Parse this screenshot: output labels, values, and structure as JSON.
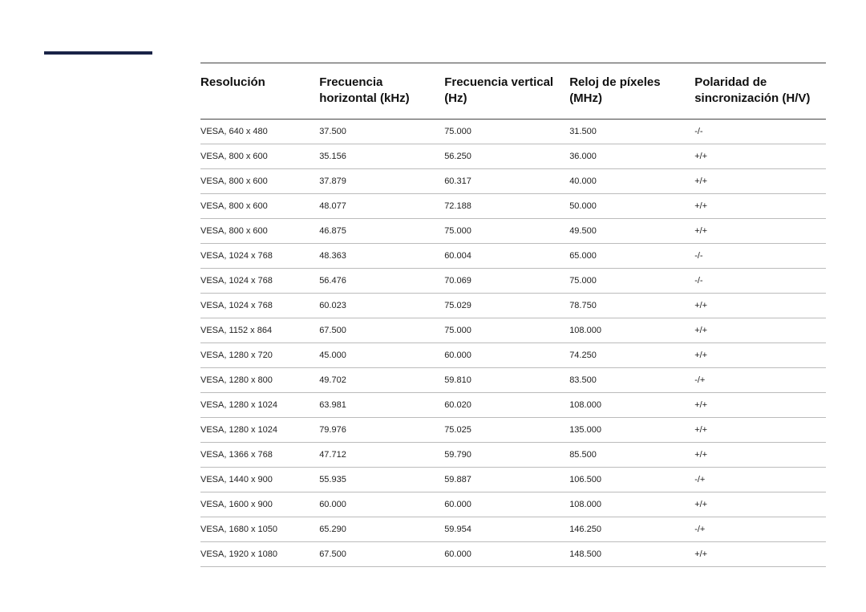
{
  "table": {
    "columns": [
      "Resolución",
      "Frecuencia horizontal (kHz)",
      "Frecuencia vertical (Hz)",
      "Reloj de píxeles (MHz)",
      "Polaridad de sincronización (H/V)"
    ],
    "rows": [
      [
        "VESA, 640 x 480",
        "37.500",
        "75.000",
        "31.500",
        "-/-"
      ],
      [
        "VESA, 800 x 600",
        "35.156",
        "56.250",
        "36.000",
        "+/+"
      ],
      [
        "VESA, 800 x 600",
        "37.879",
        "60.317",
        "40.000",
        "+/+"
      ],
      [
        "VESA, 800 x 600",
        "48.077",
        "72.188",
        "50.000",
        "+/+"
      ],
      [
        "VESA, 800 x 600",
        "46.875",
        "75.000",
        "49.500",
        "+/+"
      ],
      [
        "VESA, 1024 x 768",
        "48.363",
        "60.004",
        "65.000",
        "-/-"
      ],
      [
        "VESA, 1024 x 768",
        "56.476",
        "70.069",
        "75.000",
        "-/-"
      ],
      [
        "VESA, 1024 x 768",
        "60.023",
        "75.029",
        "78.750",
        "+/+"
      ],
      [
        "VESA, 1152 x 864",
        "67.500",
        "75.000",
        "108.000",
        "+/+"
      ],
      [
        "VESA, 1280 x 720",
        "45.000",
        "60.000",
        "74.250",
        "+/+"
      ],
      [
        "VESA, 1280 x 800",
        "49.702",
        "59.810",
        "83.500",
        "-/+"
      ],
      [
        "VESA, 1280 x 1024",
        "63.981",
        "60.020",
        "108.000",
        "+/+"
      ],
      [
        "VESA, 1280 x 1024",
        "79.976",
        "75.025",
        "135.000",
        "+/+"
      ],
      [
        "VESA, 1366 x 768",
        "47.712",
        "59.790",
        "85.500",
        "+/+"
      ],
      [
        "VESA, 1440 x 900",
        "55.935",
        "59.887",
        "106.500",
        "-/+"
      ],
      [
        "VESA, 1600 x 900",
        "60.000",
        "60.000",
        "108.000",
        "+/+"
      ],
      [
        "VESA, 1680 x 1050",
        "65.290",
        "59.954",
        "146.250",
        "-/+"
      ],
      [
        "VESA, 1920 x 1080",
        "67.500",
        "60.000",
        "148.500",
        "+/+"
      ]
    ]
  },
  "style": {
    "page_bg": "#ffffff",
    "sidebar_mark_color": "#1a2347",
    "header_border_color": "#444444",
    "row_border_color": "#bbbbbb",
    "header_fontsize": 15,
    "cell_fontsize": 11,
    "header_color": "#111111",
    "cell_color": "#222222"
  }
}
